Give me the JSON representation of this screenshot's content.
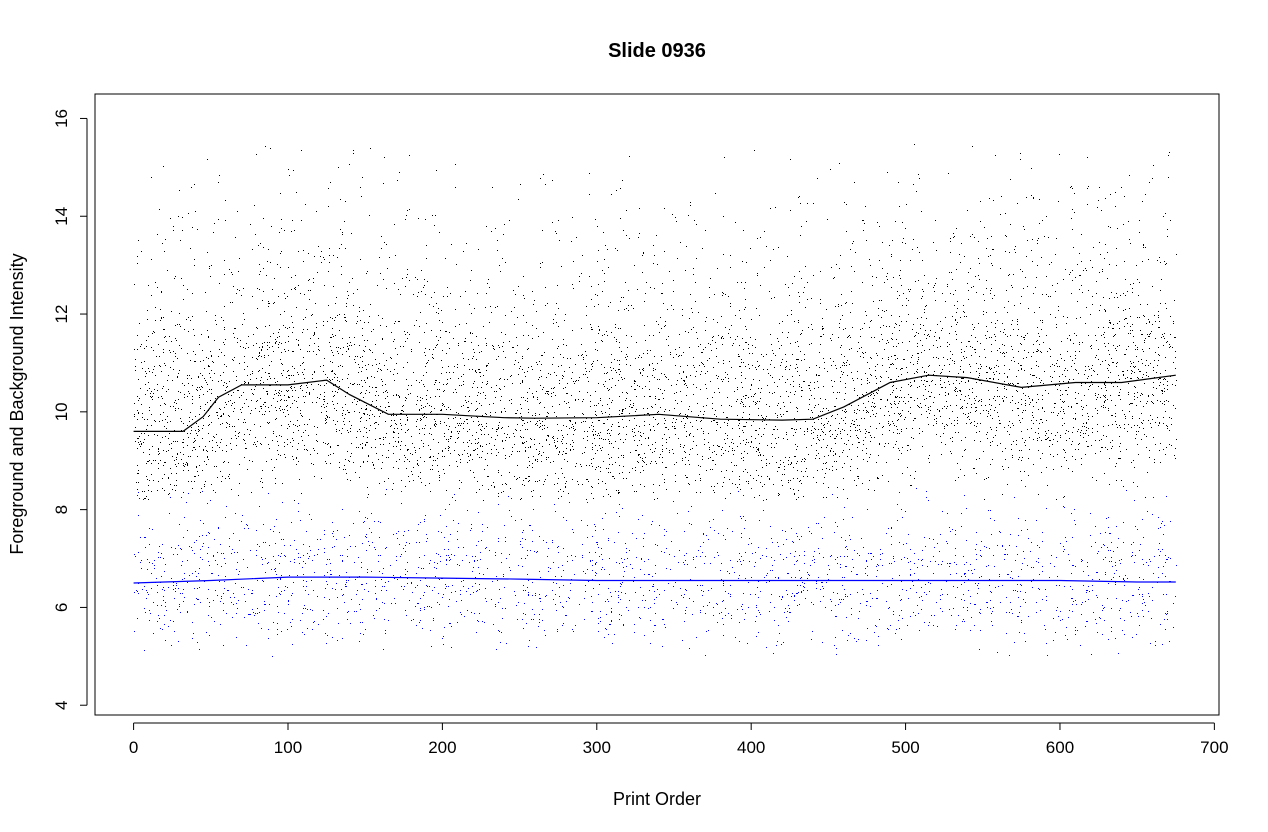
{
  "chart_data": {
    "type": "scatter",
    "title": "Slide 0936",
    "xlabel": "Print Order",
    "ylabel": "Foreground and Background Intensity",
    "xlim": [
      -25,
      703
    ],
    "ylim": [
      3.8,
      16.5
    ],
    "xticks": [
      0,
      100,
      200,
      300,
      400,
      500,
      600,
      700
    ],
    "yticks": [
      4,
      6,
      8,
      10,
      12,
      14,
      16
    ],
    "series": [
      {
        "role": "foreground",
        "color": "#000000",
        "x_range": [
          0,
          675
        ],
        "y_range": [
          8.2,
          15.5
        ],
        "point_count": 9000,
        "trend": {
          "x": [
            0,
            15,
            32,
            45,
            55,
            70,
            100,
            125,
            140,
            165,
            200,
            240,
            260,
            300,
            340,
            380,
            420,
            440,
            460,
            490,
            515,
            540,
            575,
            610,
            640,
            675
          ],
          "y": [
            9.6,
            9.6,
            9.6,
            9.9,
            10.3,
            10.55,
            10.55,
            10.65,
            10.35,
            9.95,
            9.95,
            9.88,
            9.87,
            9.88,
            9.95,
            9.85,
            9.83,
            9.85,
            10.1,
            10.6,
            10.75,
            10.7,
            10.5,
            10.6,
            10.6,
            10.75
          ]
        }
      },
      {
        "role": "background",
        "color": "#0000ff",
        "x_range": [
          0,
          675
        ],
        "y_range": [
          5.0,
          8.5
        ],
        "point_count": 11000,
        "trend": {
          "x": [
            0,
            50,
            100,
            150,
            200,
            250,
            300,
            350,
            400,
            450,
            500,
            550,
            600,
            650,
            675
          ],
          "y": [
            6.5,
            6.55,
            6.62,
            6.62,
            6.6,
            6.58,
            6.55,
            6.55,
            6.55,
            6.55,
            6.55,
            6.55,
            6.55,
            6.52,
            6.52
          ]
        }
      }
    ],
    "grid": false,
    "legend": "none"
  }
}
